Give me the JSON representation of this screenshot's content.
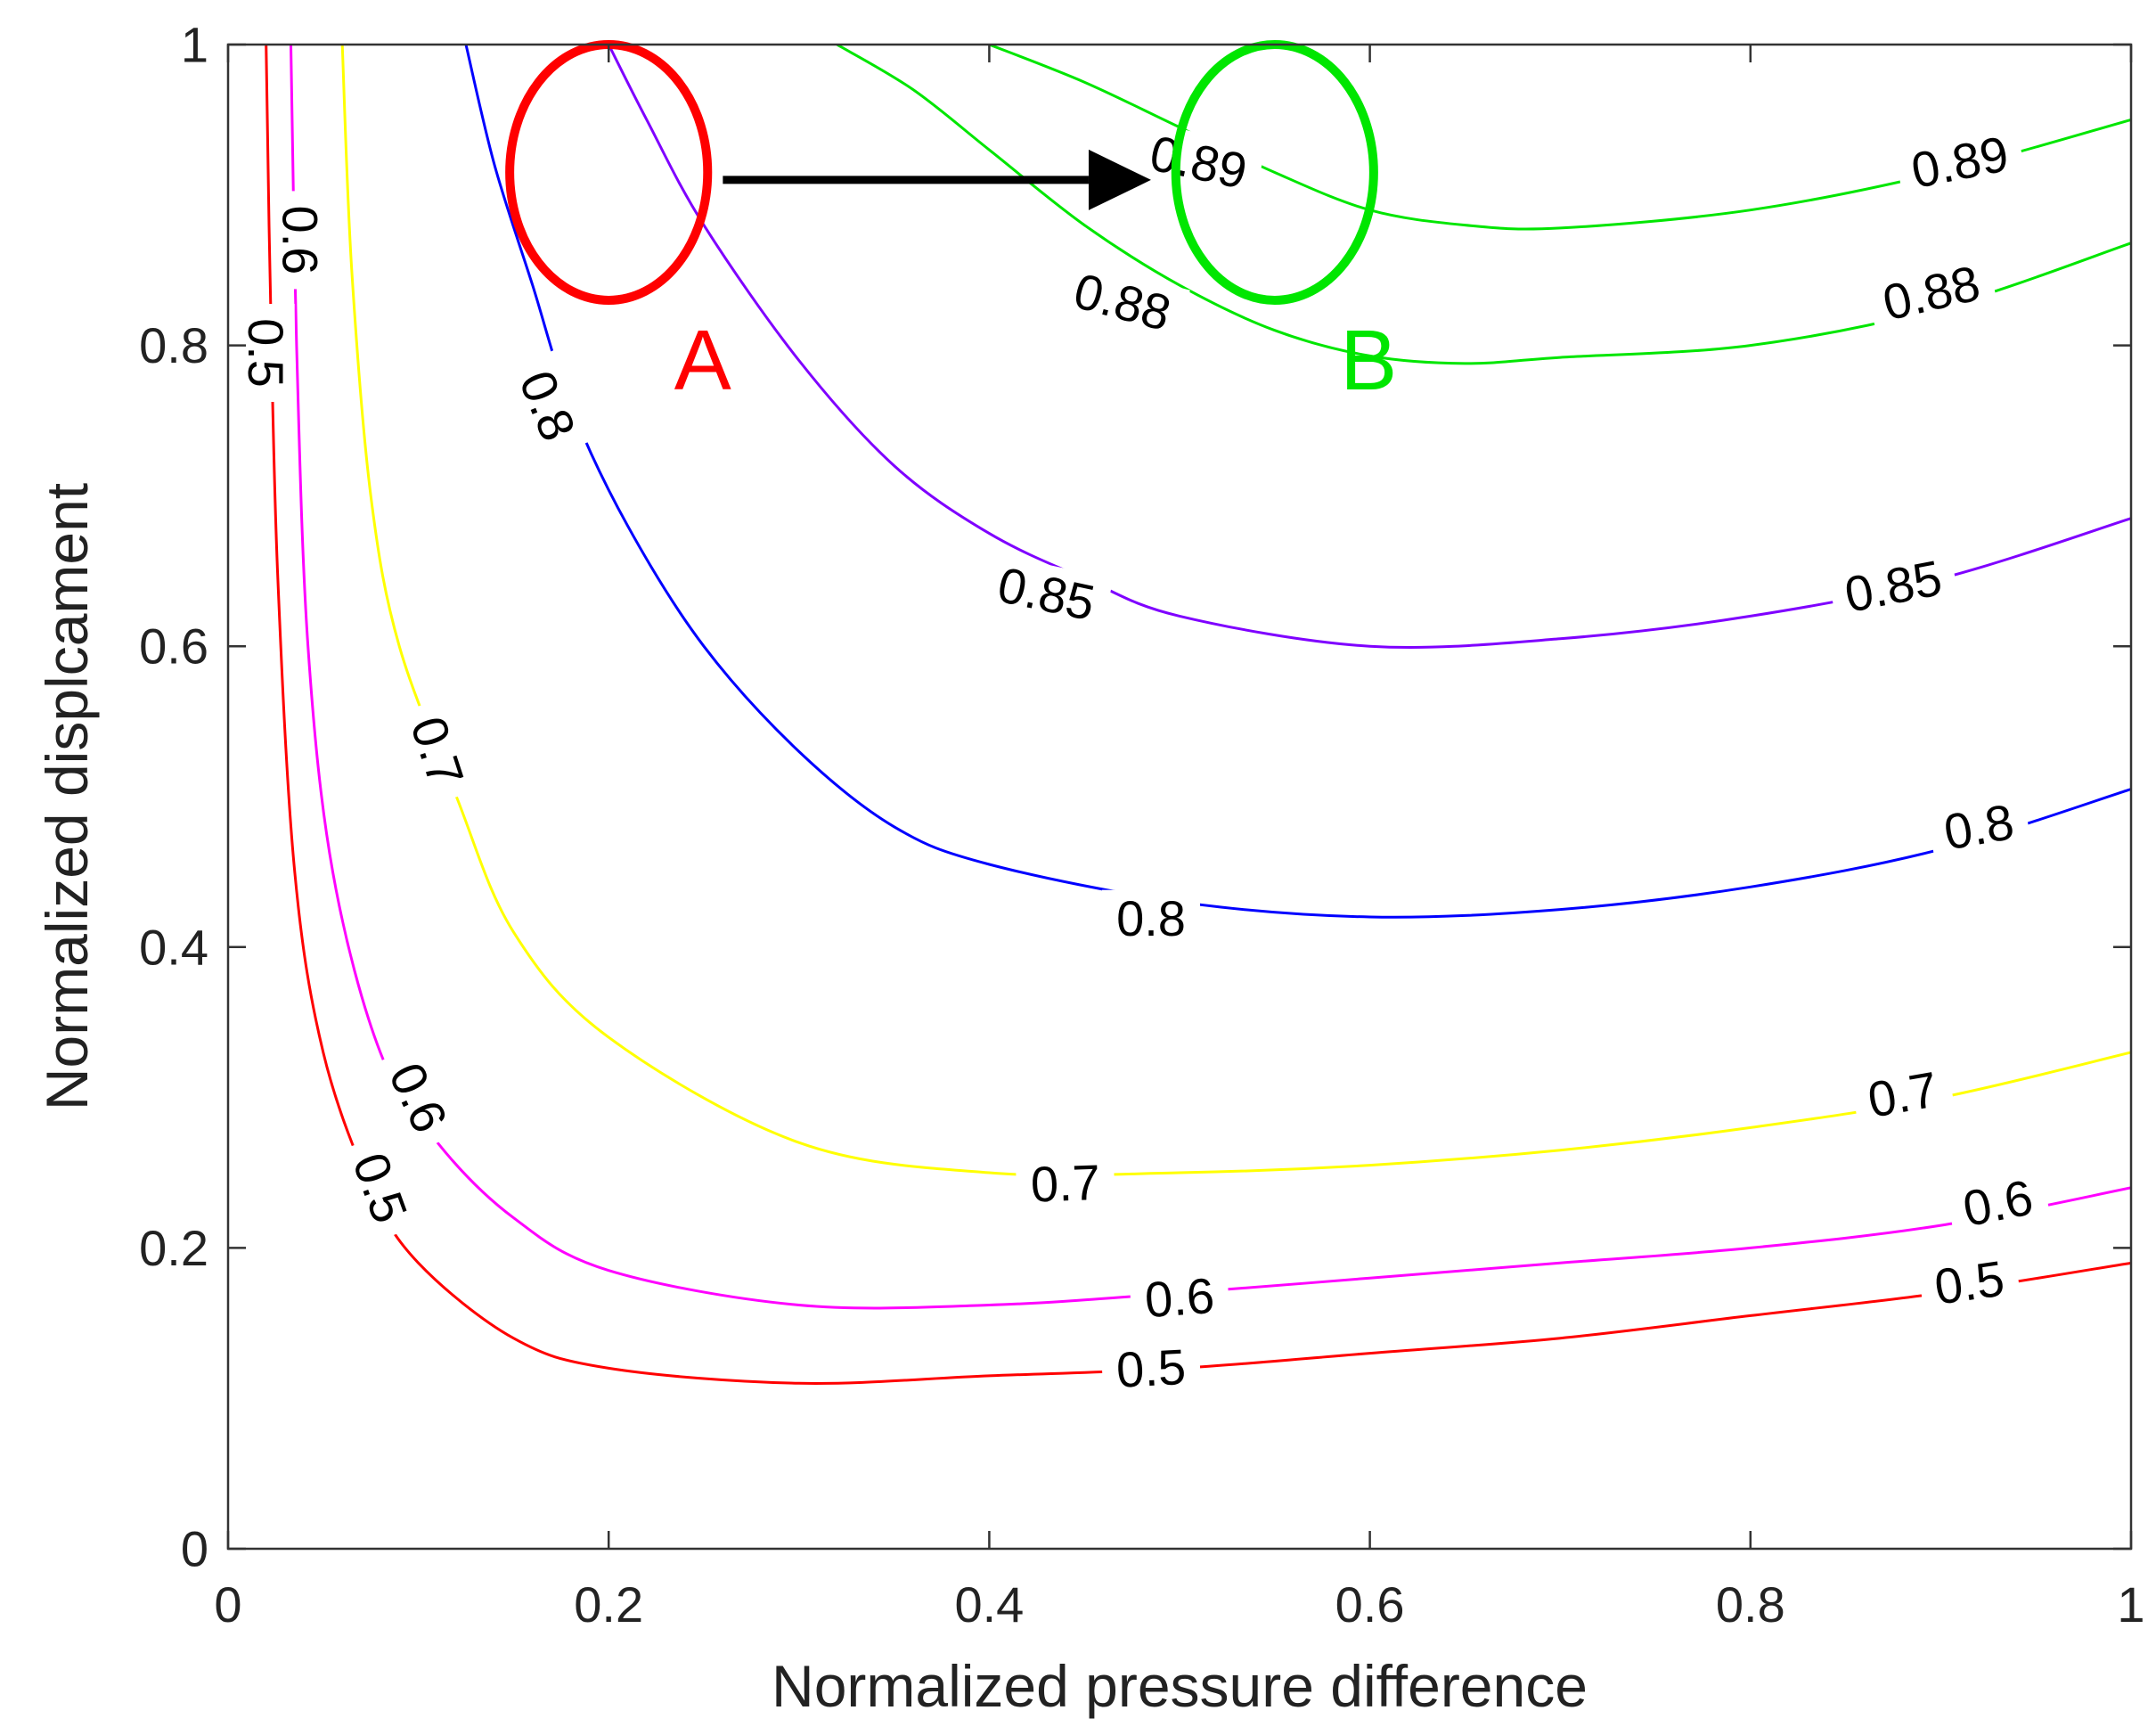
{
  "chart_data": {
    "type": "contour",
    "title": "",
    "xlabel": "Normalized pressure difference",
    "ylabel": "Normalized displcament",
    "xlim": [
      0,
      1
    ],
    "ylim": [
      0,
      1
    ],
    "xticks": [
      0,
      0.2,
      0.4,
      0.6,
      0.8,
      1
    ],
    "yticks": [
      0,
      0.2,
      0.4,
      0.6,
      0.8,
      1
    ],
    "xtick_labels": [
      "0",
      "0.2",
      "0.4",
      "0.6",
      "0.8",
      "1"
    ],
    "ytick_labels": [
      "0",
      "0.2",
      "0.4",
      "0.6",
      "0.8",
      "1"
    ],
    "grid": false,
    "series": [
      {
        "name": "0.5",
        "level": 0.5,
        "color": "#ff0000",
        "points": [
          [
            0.02,
            1.0
          ],
          [
            0.022,
            0.85
          ],
          [
            0.026,
            0.65
          ],
          [
            0.035,
            0.45
          ],
          [
            0.05,
            0.33
          ],
          [
            0.075,
            0.24
          ],
          [
            0.1,
            0.19
          ],
          [
            0.15,
            0.14
          ],
          [
            0.2,
            0.12
          ],
          [
            0.3,
            0.11
          ],
          [
            0.4,
            0.115
          ],
          [
            0.5,
            0.12
          ],
          [
            0.6,
            0.13
          ],
          [
            0.7,
            0.14
          ],
          [
            0.8,
            0.155
          ],
          [
            0.9,
            0.17
          ],
          [
            1.0,
            0.19
          ]
        ],
        "labels": [
          {
            "text": "0.5",
            "x": 0.02,
            "y": 0.795,
            "angle": 90
          },
          {
            "text": "0.5",
            "x": 0.08,
            "y": 0.24,
            "angle": 70
          },
          {
            "text": "0.5",
            "x": 0.485,
            "y": 0.12,
            "angle": -3
          },
          {
            "text": "0.5",
            "x": 0.915,
            "y": 0.177,
            "angle": -8
          }
        ]
      },
      {
        "name": "0.6",
        "level": 0.6,
        "color": "#ff00ff",
        "points": [
          [
            0.033,
            1.0
          ],
          [
            0.036,
            0.8
          ],
          [
            0.042,
            0.6
          ],
          [
            0.055,
            0.45
          ],
          [
            0.08,
            0.33
          ],
          [
            0.11,
            0.27
          ],
          [
            0.15,
            0.22
          ],
          [
            0.2,
            0.185
          ],
          [
            0.3,
            0.162
          ],
          [
            0.4,
            0.162
          ],
          [
            0.5,
            0.17
          ],
          [
            0.6,
            0.18
          ],
          [
            0.7,
            0.19
          ],
          [
            0.8,
            0.2
          ],
          [
            0.9,
            0.215
          ],
          [
            1.0,
            0.24
          ]
        ],
        "labels": [
          {
            "text": "0.6",
            "x": 0.038,
            "y": 0.87,
            "angle": 90
          },
          {
            "text": "0.6",
            "x": 0.1,
            "y": 0.3,
            "angle": 65
          },
          {
            "text": "0.6",
            "x": 0.5,
            "y": 0.167,
            "angle": -4
          },
          {
            "text": "0.6",
            "x": 0.93,
            "y": 0.23,
            "angle": -11
          }
        ]
      },
      {
        "name": "0.7",
        "level": 0.7,
        "color": "#ffff00",
        "points": [
          [
            0.06,
            1.0
          ],
          [
            0.065,
            0.85
          ],
          [
            0.075,
            0.7
          ],
          [
            0.09,
            0.6
          ],
          [
            0.12,
            0.5
          ],
          [
            0.15,
            0.41
          ],
          [
            0.2,
            0.34
          ],
          [
            0.3,
            0.27
          ],
          [
            0.4,
            0.25
          ],
          [
            0.5,
            0.25
          ],
          [
            0.6,
            0.255
          ],
          [
            0.7,
            0.265
          ],
          [
            0.8,
            0.28
          ],
          [
            0.9,
            0.3
          ],
          [
            1.0,
            0.33
          ]
        ],
        "labels": [
          {
            "text": "0.7",
            "x": 0.11,
            "y": 0.53,
            "angle": 72
          },
          {
            "text": "0.7",
            "x": 0.44,
            "y": 0.243,
            "angle": -2
          },
          {
            "text": "0.7",
            "x": 0.88,
            "y": 0.302,
            "angle": -10
          }
        ]
      },
      {
        "name": "0.8",
        "level": 0.8,
        "color": "#0000ff",
        "points": [
          [
            0.125,
            1.0
          ],
          [
            0.14,
            0.92
          ],
          [
            0.16,
            0.84
          ],
          [
            0.18,
            0.76
          ],
          [
            0.21,
            0.68
          ],
          [
            0.25,
            0.6
          ],
          [
            0.3,
            0.53
          ],
          [
            0.35,
            0.48
          ],
          [
            0.4,
            0.455
          ],
          [
            0.5,
            0.43
          ],
          [
            0.6,
            0.42
          ],
          [
            0.7,
            0.425
          ],
          [
            0.8,
            0.44
          ],
          [
            0.9,
            0.465
          ],
          [
            1.0,
            0.505
          ]
        ],
        "labels": [
          {
            "text": "0.8",
            "x": 0.168,
            "y": 0.76,
            "angle": 68
          },
          {
            "text": "0.8",
            "x": 0.485,
            "y": 0.419,
            "angle": 0
          },
          {
            "text": "0.8",
            "x": 0.92,
            "y": 0.48,
            "angle": -10
          }
        ]
      },
      {
        "name": "0.85",
        "level": 0.85,
        "color": "#7f00ff",
        "points": [
          [
            0.2,
            1.0
          ],
          [
            0.22,
            0.95
          ],
          [
            0.25,
            0.88
          ],
          [
            0.3,
            0.79
          ],
          [
            0.35,
            0.72
          ],
          [
            0.4,
            0.675
          ],
          [
            0.45,
            0.645
          ],
          [
            0.5,
            0.62
          ],
          [
            0.6,
            0.6
          ],
          [
            0.7,
            0.605
          ],
          [
            0.8,
            0.62
          ],
          [
            0.9,
            0.645
          ],
          [
            1.0,
            0.685
          ]
        ],
        "labels": [
          {
            "text": "0.85",
            "x": 0.43,
            "y": 0.635,
            "angle": 12
          },
          {
            "text": "0.85",
            "x": 0.875,
            "y": 0.64,
            "angle": -11
          }
        ]
      },
      {
        "name": "0.88",
        "level": 0.88,
        "color": "#00e600",
        "points": [
          [
            0.32,
            1.0
          ],
          [
            0.36,
            0.97
          ],
          [
            0.4,
            0.93
          ],
          [
            0.45,
            0.88
          ],
          [
            0.5,
            0.84
          ],
          [
            0.55,
            0.81
          ],
          [
            0.6,
            0.793
          ],
          [
            0.65,
            0.788
          ],
          [
            0.7,
            0.792
          ],
          [
            0.8,
            0.8
          ],
          [
            0.9,
            0.825
          ],
          [
            1.0,
            0.868
          ]
        ],
        "labels": [
          {
            "text": "0.88",
            "x": 0.47,
            "y": 0.829,
            "angle": 15
          },
          {
            "text": "0.88",
            "x": 0.895,
            "y": 0.835,
            "angle": -13
          }
        ]
      },
      {
        "name": "0.89",
        "level": 0.89,
        "color": "#00e600",
        "points": [
          [
            0.4,
            1.0
          ],
          [
            0.45,
            0.975
          ],
          [
            0.5,
            0.945
          ],
          [
            0.55,
            0.915
          ],
          [
            0.6,
            0.89
          ],
          [
            0.65,
            0.88
          ],
          [
            0.7,
            0.878
          ],
          [
            0.8,
            0.89
          ],
          [
            0.9,
            0.915
          ],
          [
            1.0,
            0.95
          ]
        ],
        "labels": [
          {
            "text": "0.89",
            "x": 0.51,
            "y": 0.922,
            "angle": 12
          },
          {
            "text": "0.89",
            "x": 0.91,
            "y": 0.922,
            "angle": -11
          }
        ]
      }
    ],
    "annotations": [
      {
        "type": "ellipse",
        "label": "A",
        "color": "#ff0000",
        "center": [
          0.2,
          0.915
        ],
        "radius_data": [
          0.052,
          0.085
        ]
      },
      {
        "type": "ellipse",
        "label": "B",
        "color": "#00e600",
        "center": [
          0.55,
          0.915
        ],
        "radius_data": [
          0.052,
          0.085
        ]
      },
      {
        "type": "arrow",
        "color": "#000000",
        "from": [
          0.26,
          0.91
        ],
        "to": [
          0.485,
          0.91
        ]
      }
    ]
  }
}
